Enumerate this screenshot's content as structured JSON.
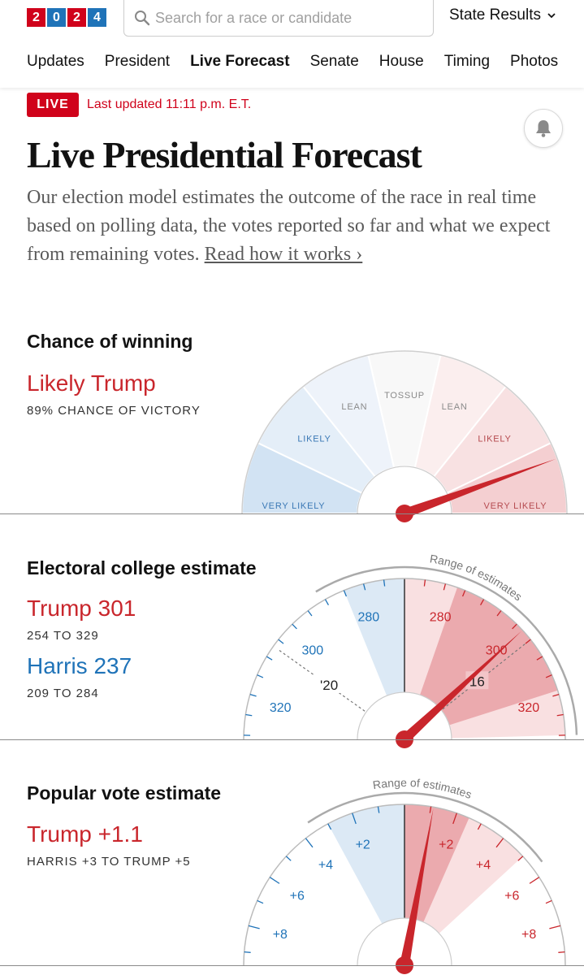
{
  "header": {
    "logo_digits": [
      "2",
      "0",
      "2",
      "4"
    ],
    "logo_colors": [
      "#d0021b",
      "#1f73b8",
      "#d0021b",
      "#1f73b8"
    ],
    "search_placeholder": "Search for a race or candidate",
    "state_results_label": "State Results",
    "search_icon": "search-icon",
    "dropdown_icon": "chevron-down-icon"
  },
  "nav": {
    "items": [
      "Updates",
      "President",
      "Live Forecast",
      "Senate",
      "House",
      "Timing",
      "Photos"
    ],
    "active": "Live Forecast"
  },
  "live": {
    "badge": "LIVE",
    "updated": "Last updated 11:11 p.m. E.T."
  },
  "bell_icon": "bell-icon",
  "title": "Live Presidential Forecast",
  "description": {
    "text": "Our election model estimates the outcome of the race in real time based on polling data, the votes reported so far and what we expect from remaining votes. ",
    "link": "Read how it works ›"
  },
  "colors": {
    "red": "#c9262c",
    "blue": "#1f73b8",
    "live_red": "#d0021b"
  },
  "chance": {
    "title": "Chance of winning",
    "headline": "Likely Trump",
    "subtitle": "89% CHANCE OF VICTORY",
    "segment_labels": [
      "VERY LIKELY",
      "LIKELY",
      "LEAN",
      "TOSSUP",
      "LEAN",
      "LIKELY",
      "VERY LIKELY"
    ],
    "trump_probability": 0.89
  },
  "electoral": {
    "title": "Electoral college estimate",
    "trump_label": "Trump 301",
    "trump_range": "254 TO 329",
    "harris_label": "Harris 237",
    "harris_range": "209 TO 284",
    "range_caption": "Range of estimates",
    "tick_labels": {
      "blue": [
        "280",
        "300",
        "320"
      ],
      "red": [
        "280",
        "300",
        "320"
      ]
    },
    "marker_2020": "'20",
    "marker_2016": "16",
    "gauge_min": 208,
    "gauge_max": 330,
    "center": 269,
    "trump_estimate": 301,
    "trump_low": 254,
    "trump_high": 329,
    "harris_low": 209,
    "harris_high": 284,
    "inner_band_low": 282,
    "inner_band_high": 318
  },
  "popular": {
    "title": "Popular vote estimate",
    "headline": "Trump +1.1",
    "subtitle": "HARRIS +3 TO TRUMP +5",
    "range_caption": "Range of estimates",
    "tick_labels": {
      "blue": [
        "+2",
        "+4",
        "+6",
        "+8"
      ],
      "red": [
        "+2",
        "+4",
        "+6",
        "+8"
      ]
    },
    "gauge_min": -9.5,
    "gauge_max": 9.5,
    "trump_margin": 1.1,
    "range_low": -3,
    "range_high": 5,
    "inner_band_low": 0,
    "inner_band_high": 2.5
  }
}
